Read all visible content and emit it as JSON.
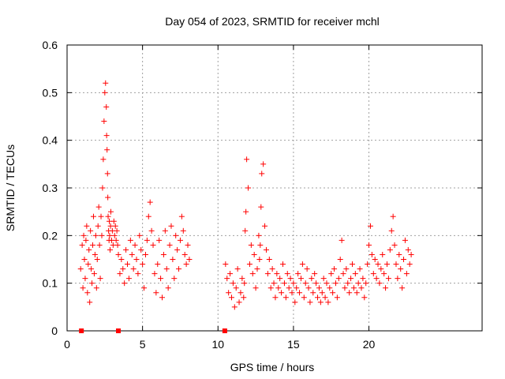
{
  "chart_data": {
    "type": "scatter",
    "title": "Day 054 of 2023, SRMTID for receiver mchl",
    "xlabel": "GPS time / hours",
    "ylabel": "SRMTID / TECUs",
    "xlim": [
      0,
      27.5
    ],
    "ylim": [
      0,
      0.6
    ],
    "x_ticks": [
      0,
      5,
      10,
      15,
      20
    ],
    "x_tick_labels": [
      "0",
      "5",
      "10",
      "15",
      "20"
    ],
    "y_ticks": [
      0,
      0.1,
      0.2,
      0.3,
      0.4,
      0.5,
      0.6
    ],
    "y_tick_labels": [
      "0",
      "0.1",
      "0.2",
      "0.3",
      "0.4",
      "0.5",
      "0.6"
    ],
    "grid": true,
    "marker": "plus",
    "color": "#ff0000",
    "zero_markers_x": [
      0.95,
      3.4,
      10.45
    ],
    "series": [
      {
        "name": "SRMTID",
        "x": [
          0.9,
          1.0,
          1.05,
          1.1,
          1.15,
          1.2,
          1.25,
          1.3,
          1.35,
          1.4,
          1.45,
          1.5,
          1.55,
          1.6,
          1.65,
          1.7,
          1.75,
          1.8,
          1.85,
          1.9,
          1.95,
          2.0,
          2.05,
          2.1,
          2.15,
          2.2,
          2.25,
          2.3,
          2.35,
          2.4,
          2.45,
          2.5,
          2.55,
          2.6,
          2.62,
          2.65,
          2.68,
          2.7,
          2.72,
          2.75,
          2.78,
          2.8,
          2.82,
          2.85,
          2.88,
          2.9,
          2.95,
          3.0,
          3.05,
          3.1,
          3.15,
          3.2,
          3.25,
          3.3,
          3.35,
          3.4,
          3.5,
          3.6,
          3.7,
          3.8,
          3.9,
          4.0,
          4.1,
          4.2,
          4.3,
          4.4,
          4.5,
          4.6,
          4.7,
          4.8,
          4.9,
          5.0,
          5.1,
          5.2,
          5.3,
          5.4,
          5.5,
          5.6,
          5.7,
          5.8,
          5.9,
          6.0,
          6.1,
          6.2,
          6.3,
          6.4,
          6.5,
          6.6,
          6.7,
          6.8,
          6.9,
          7.0,
          7.1,
          7.2,
          7.3,
          7.4,
          7.5,
          7.6,
          7.7,
          7.8,
          7.9,
          8.0,
          8.1,
          10.5,
          10.6,
          10.7,
          10.8,
          10.9,
          11.0,
          11.1,
          11.2,
          11.3,
          11.4,
          11.5,
          11.6,
          11.7,
          11.75,
          11.8,
          11.85,
          11.9,
          12.0,
          12.1,
          12.2,
          12.3,
          12.4,
          12.5,
          12.6,
          12.7,
          12.75,
          12.8,
          12.85,
          12.9,
          13.0,
          13.1,
          13.2,
          13.3,
          13.4,
          13.5,
          13.6,
          13.7,
          13.8,
          13.9,
          14.0,
          14.1,
          14.2,
          14.3,
          14.4,
          14.5,
          14.6,
          14.7,
          14.8,
          14.9,
          15.0,
          15.1,
          15.2,
          15.3,
          15.4,
          15.5,
          15.6,
          15.7,
          15.8,
          15.9,
          16.0,
          16.1,
          16.2,
          16.3,
          16.4,
          16.5,
          16.6,
          16.7,
          16.8,
          16.9,
          17.0,
          17.1,
          17.2,
          17.3,
          17.4,
          17.5,
          17.6,
          17.7,
          17.8,
          17.9,
          18.0,
          18.1,
          18.2,
          18.3,
          18.4,
          18.5,
          18.6,
          18.7,
          18.8,
          18.9,
          19.0,
          19.1,
          19.2,
          19.3,
          19.4,
          19.5,
          19.6,
          19.7,
          19.8,
          19.9,
          20.0,
          20.1,
          20.2,
          20.3,
          20.4,
          20.5,
          20.6,
          20.7,
          20.8,
          20.9,
          21.0,
          21.1,
          21.2,
          21.3,
          21.4,
          21.5,
          21.6,
          21.7,
          21.8,
          21.9,
          22.0,
          22.1,
          22.2,
          22.3,
          22.4,
          22.5,
          22.6,
          22.7,
          22.8
        ],
        "y": [
          0.13,
          0.18,
          0.09,
          0.2,
          0.15,
          0.11,
          0.19,
          0.22,
          0.08,
          0.14,
          0.17,
          0.06,
          0.21,
          0.13,
          0.1,
          0.18,
          0.24,
          0.12,
          0.16,
          0.2,
          0.09,
          0.15,
          0.22,
          0.26,
          0.18,
          0.11,
          0.24,
          0.2,
          0.3,
          0.36,
          0.44,
          0.5,
          0.52,
          0.47,
          0.41,
          0.38,
          0.33,
          0.28,
          0.24,
          0.21,
          0.19,
          0.23,
          0.2,
          0.17,
          0.22,
          0.25,
          0.19,
          0.21,
          0.18,
          0.23,
          0.2,
          0.22,
          0.19,
          0.21,
          0.18,
          0.16,
          0.12,
          0.15,
          0.13,
          0.1,
          0.17,
          0.14,
          0.11,
          0.19,
          0.16,
          0.13,
          0.18,
          0.15,
          0.12,
          0.2,
          0.17,
          0.14,
          0.09,
          0.16,
          0.19,
          0.24,
          0.27,
          0.21,
          0.18,
          0.12,
          0.08,
          0.14,
          0.19,
          0.11,
          0.07,
          0.16,
          0.21,
          0.13,
          0.09,
          0.18,
          0.22,
          0.15,
          0.11,
          0.2,
          0.17,
          0.13,
          0.19,
          0.24,
          0.21,
          0.16,
          0.14,
          0.18,
          0.15,
          0.14,
          0.11,
          0.08,
          0.12,
          0.07,
          0.1,
          0.05,
          0.09,
          0.13,
          0.06,
          0.08,
          0.11,
          0.07,
          0.1,
          0.21,
          0.25,
          0.36,
          0.3,
          0.14,
          0.18,
          0.12,
          0.16,
          0.09,
          0.13,
          0.2,
          0.15,
          0.18,
          0.26,
          0.33,
          0.35,
          0.22,
          0.17,
          0.12,
          0.15,
          0.09,
          0.13,
          0.1,
          0.07,
          0.12,
          0.09,
          0.11,
          0.08,
          0.14,
          0.1,
          0.07,
          0.12,
          0.09,
          0.11,
          0.08,
          0.1,
          0.06,
          0.09,
          0.12,
          0.08,
          0.11,
          0.14,
          0.07,
          0.1,
          0.13,
          0.09,
          0.06,
          0.11,
          0.08,
          0.12,
          0.1,
          0.07,
          0.09,
          0.06,
          0.08,
          0.11,
          0.07,
          0.1,
          0.06,
          0.09,
          0.12,
          0.08,
          0.13,
          0.1,
          0.07,
          0.11,
          0.15,
          0.19,
          0.12,
          0.09,
          0.13,
          0.1,
          0.08,
          0.11,
          0.14,
          0.09,
          0.12,
          0.08,
          0.1,
          0.13,
          0.09,
          0.11,
          0.07,
          0.1,
          0.14,
          0.18,
          0.22,
          0.16,
          0.12,
          0.15,
          0.11,
          0.14,
          0.1,
          0.13,
          0.16,
          0.12,
          0.09,
          0.14,
          0.11,
          0.17,
          0.21,
          0.24,
          0.18,
          0.14,
          0.11,
          0.16,
          0.13,
          0.09,
          0.15,
          0.19,
          0.12,
          0.17,
          0.14,
          0.16
        ]
      }
    ]
  }
}
